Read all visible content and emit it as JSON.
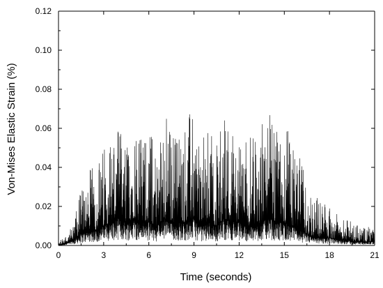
{
  "chart_data": {
    "type": "line",
    "xlabel": "Time (seconds)",
    "ylabel": "Von-Mises Elastic Strain (%)",
    "xlim": [
      0,
      21
    ],
    "ylim": [
      0,
      0.12
    ],
    "x_ticks": [
      0,
      3,
      6,
      9,
      12,
      15,
      18,
      21
    ],
    "x_tick_labels": [
      "0",
      "3",
      "6",
      "9",
      "12",
      "15",
      "18",
      "21"
    ],
    "y_ticks": [
      0,
      0.02,
      0.04,
      0.06,
      0.08,
      0.1,
      0.12
    ],
    "y_tick_labels": [
      "0.00",
      "0.02",
      "0.04",
      "0.06",
      "0.08",
      "0.10",
      "0.12"
    ],
    "grid": false,
    "series": [
      {
        "color": "#000000",
        "envelope_x": [
          0,
          0.5,
          1.0,
          1.5,
          2.0,
          2.5,
          3.0,
          3.5,
          4.0,
          4.5,
          5.0,
          5.5,
          6.0,
          6.5,
          7.0,
          7.5,
          8.0,
          8.5,
          9.0,
          9.5,
          10.0,
          10.5,
          11.0,
          11.5,
          12.0,
          12.5,
          13.0,
          13.5,
          14.0,
          14.5,
          15.0,
          15.5,
          16.0,
          16.5,
          17.0,
          17.5,
          18.0,
          18.5,
          19.0,
          19.5,
          20.0,
          20.5,
          21.0
        ],
        "envelope_peak": [
          0.002,
          0.006,
          0.01,
          0.032,
          0.04,
          0.04,
          0.052,
          0.06,
          0.062,
          0.05,
          0.07,
          0.056,
          0.064,
          0.05,
          0.074,
          0.058,
          0.062,
          0.066,
          0.07,
          0.054,
          0.06,
          0.054,
          0.07,
          0.062,
          0.058,
          0.055,
          0.056,
          0.064,
          0.068,
          0.058,
          0.07,
          0.05,
          0.048,
          0.03,
          0.028,
          0.022,
          0.02,
          0.016,
          0.014,
          0.012,
          0.01,
          0.01,
          0.008
        ],
        "envelope_base": [
          0.0,
          0.001,
          0.003,
          0.006,
          0.008,
          0.008,
          0.01,
          0.012,
          0.014,
          0.012,
          0.014,
          0.012,
          0.012,
          0.01,
          0.014,
          0.012,
          0.012,
          0.012,
          0.014,
          0.01,
          0.012,
          0.01,
          0.014,
          0.012,
          0.012,
          0.01,
          0.01,
          0.012,
          0.014,
          0.012,
          0.012,
          0.01,
          0.008,
          0.006,
          0.004,
          0.004,
          0.004,
          0.003,
          0.003,
          0.002,
          0.002,
          0.002,
          0.002
        ]
      }
    ]
  }
}
